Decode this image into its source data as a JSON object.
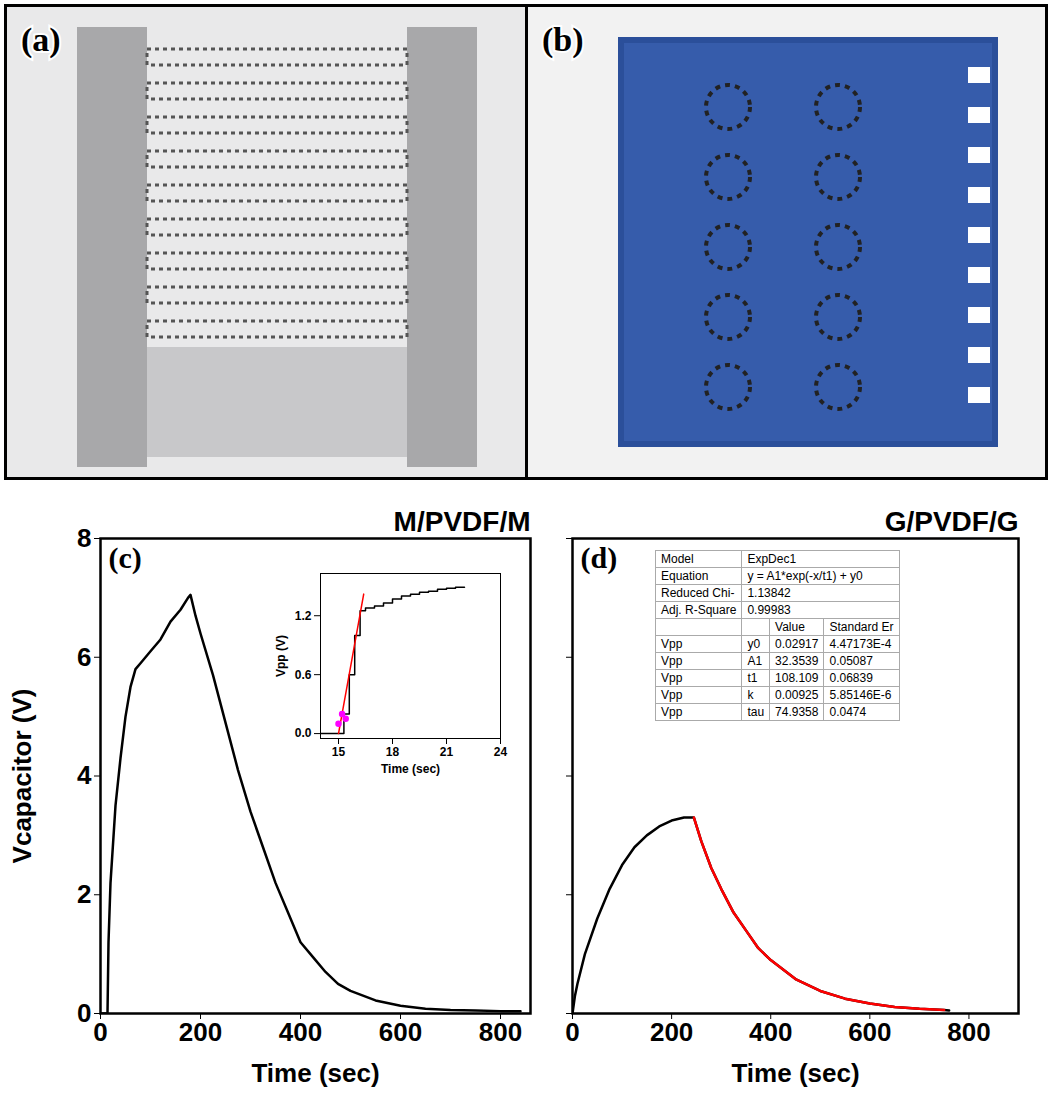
{
  "photos": [
    {
      "label": "(a)"
    },
    {
      "label": "(b)"
    }
  ],
  "chart_data": [
    {
      "type": "line",
      "panel": "(c)",
      "title": "M/PVDF/M",
      "xlabel": "Time (sec)",
      "ylabel": "Vcapacitor (V)",
      "xlim": [
        0,
        860
      ],
      "xticks": [
        0,
        200,
        400,
        600,
        800
      ],
      "ylim": [
        0,
        8
      ],
      "yticks": [
        0,
        2,
        4,
        6,
        8
      ],
      "series": [
        {
          "color": "#000000",
          "x": [
            0,
            14,
            16,
            20,
            30,
            40,
            50,
            60,
            70,
            80,
            100,
            120,
            140,
            160,
            175,
            180,
            190,
            200,
            225,
            250,
            275,
            300,
            325,
            350,
            375,
            400,
            425,
            450,
            475,
            500,
            550,
            600,
            650,
            700,
            750,
            800,
            840
          ],
          "values": [
            0,
            0,
            1.2,
            2.2,
            3.5,
            4.3,
            5.0,
            5.5,
            5.8,
            5.9,
            6.1,
            6.3,
            6.6,
            6.8,
            7.0,
            7.05,
            6.7,
            6.4,
            5.7,
            4.9,
            4.1,
            3.4,
            2.8,
            2.2,
            1.7,
            1.2,
            0.95,
            0.7,
            0.5,
            0.38,
            0.22,
            0.13,
            0.08,
            0.06,
            0.05,
            0.04,
            0.04
          ]
        }
      ],
      "inset": {
        "type": "line",
        "xlabel": "Time (sec)",
        "ylabel": "Vpp (V)",
        "xlim": [
          14,
          24
        ],
        "xticks": [
          15,
          18,
          21,
          24
        ],
        "ylim": [
          -0.05,
          1.63
        ],
        "yticks": [
          {
            "value": 0,
            "label": "0.0"
          },
          0.6,
          1.2
        ],
        "series": [
          {
            "color": "#000000",
            "line_style": "step",
            "x": [
              14,
              15,
              15.3,
              15.6,
              15.9,
              16.2,
              16.5,
              17,
              17.5,
              18,
              18.5,
              19,
              19.5,
              20,
              20.5,
              21,
              21.5,
              22
            ],
            "values": [
              0,
              0,
              0.2,
              0.6,
              1.0,
              1.25,
              1.28,
              1.3,
              1.33,
              1.37,
              1.4,
              1.42,
              1.44,
              1.45,
              1.47,
              1.48,
              1.49,
              1.49
            ]
          },
          {
            "color": "#ff0000",
            "x": [
              15.0,
              16.4
            ],
            "values": [
              0.0,
              1.42
            ]
          },
          {
            "color": "#ff00ff",
            "marker": "circle",
            "x": [
              15.0,
              15.2,
              15.4
            ],
            "values": [
              0.1,
              0.2,
              0.15
            ]
          }
        ]
      }
    },
    {
      "type": "line",
      "panel": "(d)",
      "title": "G/PVDF/G",
      "xlabel": "Time (sec)",
      "tick_labels": "x",
      "xlim": [
        0,
        900
      ],
      "xticks": [
        0,
        200,
        400,
        600,
        800
      ],
      "ylim": [
        0,
        8
      ],
      "yticks": [
        0,
        2,
        4,
        6,
        8
      ],
      "series": [
        {
          "color": "#000000",
          "x": [
            0,
            5,
            10,
            25,
            50,
            75,
            100,
            125,
            150,
            175,
            200,
            225,
            245,
            260,
            280,
            300,
            325,
            350,
            375,
            400,
            450,
            500,
            550,
            600,
            650,
            700,
            750,
            760
          ],
          "values": [
            0,
            0.3,
            0.5,
            1.0,
            1.6,
            2.1,
            2.5,
            2.8,
            3.0,
            3.15,
            3.25,
            3.3,
            3.3,
            2.9,
            2.45,
            2.1,
            1.7,
            1.4,
            1.1,
            0.9,
            0.58,
            0.38,
            0.25,
            0.17,
            0.11,
            0.08,
            0.06,
            0.05
          ]
        },
        {
          "color": "#ff0000",
          "x": [
            245,
            260,
            280,
            300,
            325,
            350,
            375,
            400,
            450,
            500,
            550,
            600,
            650,
            700,
            750
          ],
          "values": [
            3.3,
            2.9,
            2.45,
            2.1,
            1.7,
            1.4,
            1.1,
            0.9,
            0.58,
            0.38,
            0.25,
            0.17,
            0.11,
            0.08,
            0.06
          ]
        }
      ],
      "fit_table": {
        "rows": [
          [
            "Model",
            "ExpDec1"
          ],
          [
            "Equation",
            "y = A1*exp(-x/t1) + y0"
          ],
          [
            "Reduced Chi-",
            "1.13842"
          ],
          [
            "Adj. R-Square",
            "0.99983"
          ],
          [
            null,
            null,
            "Value",
            "Standard Er"
          ],
          [
            "Vpp",
            "y0",
            "0.02917",
            "4.47173E-4"
          ],
          [
            "Vpp",
            "A1",
            "32.3539",
            "0.05087"
          ],
          [
            "Vpp",
            "t1",
            "108.109",
            "0.06839"
          ],
          [
            "Vpp",
            "k",
            "0.00925",
            "5.85146E-6"
          ],
          [
            "Vpp",
            "tau",
            "74.9358",
            "0.0474"
          ]
        ]
      }
    }
  ]
}
